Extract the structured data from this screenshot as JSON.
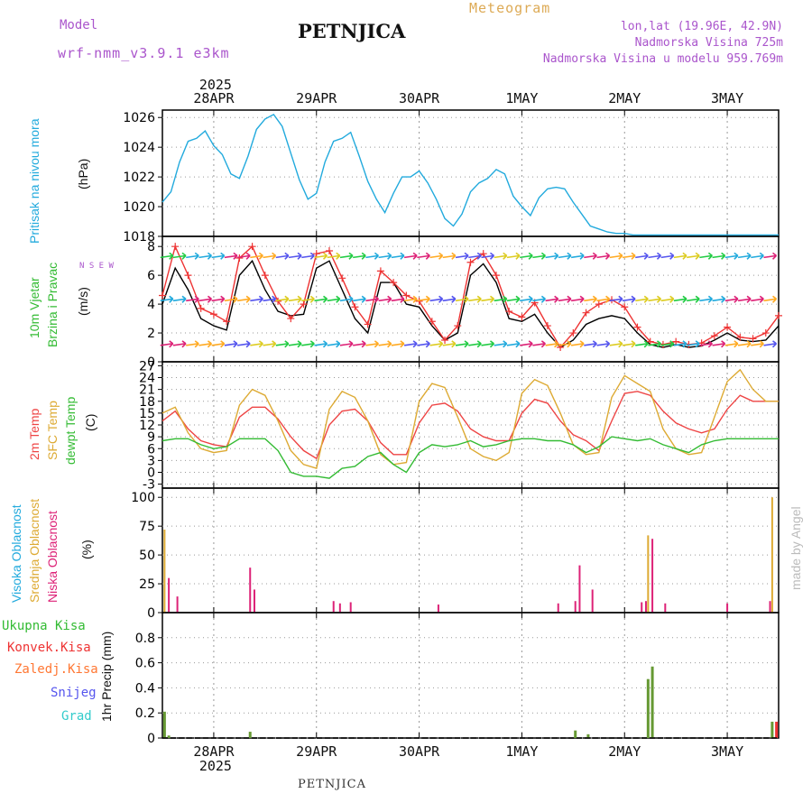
{
  "header": {
    "model_label": "Model",
    "model_name": "wrf-nmm_v3.9.1  e3km",
    "station": "PETNJICA",
    "title": "Meteogram",
    "lonlat": "lon,lat (19.96E, 42.9N)",
    "altitude": "Nadmorska Visina 725m",
    "model_altitude": "Nadmorska Visina u modelu 959.769m",
    "footer_station": "PETNJICA",
    "credit": "made by Angel"
  },
  "colors": {
    "pressure": "#22aadd",
    "wind_speed": "#000000",
    "gust": "#ee3333",
    "temp2m": "#ee4444",
    "sfc_temp": "#ddaa33",
    "dewpt": "#33bb33",
    "cloud_high": "#22aadd",
    "cloud_mid": "#ddaa33",
    "cloud_low": "#dd2277",
    "precip_total": "#669933",
    "precip_conv": "#ee3333",
    "precip_strat": "#ff7733",
    "snow": "#5555ee",
    "graupel": "#33cccc",
    "title_model": "#aa55cc",
    "title_meteo": "#ddaa55"
  },
  "chart_data": {
    "type": "meteogram",
    "time_axis": {
      "year": "2025",
      "day_labels": [
        "28APR",
        "29APR",
        "30APR",
        "1MAY",
        "2MAY",
        "3MAY"
      ],
      "start_hour": 0,
      "end_hour": 144
    },
    "panels": [
      {
        "id": "pressure",
        "type": "line",
        "ylabels": [
          "Pritisak na nivou mora",
          "(hPa)"
        ],
        "ylim": [
          1018,
          1026.5
        ],
        "yticks": [
          1018,
          1020,
          1022,
          1024,
          1026
        ],
        "series": [
          {
            "name": "Pritisak na nivou mora",
            "x": [
              0,
              2,
              4,
              6,
              8,
              10,
              12,
              14,
              16,
              18,
              20,
              22,
              24,
              26,
              28,
              30,
              32,
              34,
              36,
              38,
              40,
              42,
              44,
              46,
              48,
              50,
              52,
              54,
              56,
              58,
              60,
              62,
              64,
              66,
              68,
              70,
              72,
              74,
              76,
              78,
              80,
              82,
              84,
              86,
              88,
              90,
              92,
              94,
              96,
              98,
              100,
              102,
              104,
              106,
              108,
              110,
              112,
              114,
              116,
              118,
              120,
              122,
              124,
              126,
              128,
              130,
              132,
              134,
              136,
              138,
              140,
              142,
              144
            ],
            "values": [
              1020.3,
              1021.0,
              1023.0,
              1024.4,
              1024.6,
              1025.1,
              1024.1,
              1023.5,
              1022.2,
              1021.9,
              1023.4,
              1025.2,
              1025.9,
              1026.2,
              1025.4,
              1023.6,
              1021.8,
              1020.5,
              1020.9,
              1023.0,
              1024.4,
              1024.6,
              1025.0,
              1023.4,
              1021.7,
              1020.5,
              1019.6,
              1020.9,
              1022.0,
              1022.0,
              1022.4,
              1021.6,
              1020.5,
              1019.2,
              1018.7,
              1019.5,
              1021.0,
              1021.6,
              1021.9,
              1022.5,
              1022.2,
              1020.7,
              1020.0,
              1019.4,
              1020.6,
              1021.2,
              1021.3,
              1021.2,
              1020.3,
              1019.5,
              1018.7,
              1018.5,
              1018.3,
              1018.2,
              1018.2,
              1018.1,
              1018.1,
              1018.1,
              1018.1,
              1018.1,
              1018.1,
              1018.1,
              1018.1,
              1018.1,
              1018.1,
              1018.1,
              1018.1,
              1018.1,
              1018.1,
              1018.1,
              1018.1,
              1018.1,
              1018.1
            ]
          }
        ]
      },
      {
        "id": "wind",
        "type": "line",
        "ylabels": [
          "10m Vjetar",
          "Brzina i Pravac",
          "(m/s)"
        ],
        "compass": "N S E W",
        "ylim": [
          0,
          8.7
        ],
        "yticks": [
          0,
          2,
          4,
          6,
          8
        ],
        "series": [
          {
            "name": "Brzina",
            "x": [
              0,
              3,
              6,
              9,
              12,
              15,
              18,
              21,
              24,
              27,
              30,
              33,
              36,
              39,
              42,
              45,
              48,
              51,
              54,
              57,
              60,
              63,
              66,
              69,
              72,
              75,
              78,
              81,
              84,
              87,
              90,
              93,
              96,
              99,
              102,
              105,
              108,
              111,
              114,
              117,
              120,
              123,
              126,
              129,
              132,
              135,
              138,
              141,
              144
            ],
            "values": [
              4.0,
              6.5,
              5.0,
              3.0,
              2.5,
              2.2,
              6.0,
              7.0,
              5.0,
              3.5,
              3.2,
              3.3,
              6.5,
              7.0,
              5.0,
              3.0,
              2.0,
              5.5,
              5.5,
              4.0,
              3.8,
              2.5,
              1.5,
              2.0,
              6.0,
              6.8,
              5.5,
              3.0,
              2.8,
              3.3,
              2.0,
              1.0,
              1.5,
              2.6,
              3.0,
              3.2,
              3.0,
              2.0,
              1.2,
              1.0,
              1.2,
              1.0,
              1.1,
              1.5,
              2.0,
              1.5,
              1.4,
              1.5,
              2.5
            ]
          },
          {
            "name": "Udar",
            "x": [
              0,
              3,
              6,
              9,
              12,
              15,
              18,
              21,
              24,
              27,
              30,
              33,
              36,
              39,
              42,
              45,
              48,
              51,
              54,
              57,
              60,
              63,
              66,
              69,
              72,
              75,
              78,
              81,
              84,
              87,
              90,
              93,
              96,
              99,
              102,
              105,
              108,
              111,
              114,
              117,
              120,
              123,
              126,
              129,
              132,
              135,
              138,
              141,
              144
            ],
            "values": [
              4.6,
              8.0,
              6.0,
              3.7,
              3.3,
              2.8,
              7.2,
              8.0,
              6.0,
              4.2,
              3.0,
              4.0,
              7.5,
              7.7,
              5.8,
              3.8,
              2.6,
              6.3,
              5.5,
              4.6,
              4.2,
              2.8,
              1.5,
              2.5,
              6.9,
              7.5,
              6.0,
              3.5,
              3.1,
              4.1,
              2.5,
              1.0,
              2.0,
              3.4,
              4.0,
              4.3,
              3.8,
              2.4,
              1.4,
              1.2,
              1.4,
              1.2,
              1.3,
              1.8,
              2.4,
              1.7,
              1.6,
              2.0,
              3.2
            ]
          }
        ]
      },
      {
        "id": "temperature",
        "type": "line",
        "ylabels": [
          "2m Temp",
          "SFC Temp",
          "dewpt Temp",
          "(C)"
        ],
        "ylim": [
          -4,
          28
        ],
        "yticks": [
          -3,
          0,
          3,
          6,
          9,
          12,
          15,
          18,
          21,
          24,
          27
        ],
        "series": [
          {
            "name": "2m Temp",
            "x": [
              0,
              3,
              6,
              9,
              12,
              15,
              18,
              21,
              24,
              27,
              30,
              33,
              36,
              39,
              42,
              45,
              48,
              51,
              54,
              57,
              60,
              63,
              66,
              69,
              72,
              75,
              78,
              81,
              84,
              87,
              90,
              93,
              96,
              99,
              102,
              105,
              108,
              111,
              114,
              117,
              120,
              123,
              126,
              129,
              132,
              135,
              138,
              141,
              144
            ],
            "values": [
              13.0,
              15.5,
              11.0,
              8.0,
              7.0,
              6.5,
              14.0,
              16.5,
              16.5,
              13.5,
              9.0,
              5.5,
              3.5,
              12.0,
              15.5,
              16.0,
              13.0,
              7.5,
              4.5,
              4.5,
              12.5,
              17.0,
              17.5,
              15.5,
              11.0,
              9.0,
              8.0,
              8.0,
              15.0,
              18.5,
              17.5,
              13.0,
              9.5,
              8.0,
              5.5,
              13.0,
              20.0,
              20.5,
              19.5,
              15.5,
              12.5,
              11.0,
              10.0,
              11.0,
              16.0,
              19.5,
              18.0,
              18.0,
              18.0
            ]
          },
          {
            "name": "SFC Temp",
            "x": [
              0,
              3,
              6,
              9,
              12,
              15,
              18,
              21,
              24,
              27,
              30,
              33,
              36,
              39,
              42,
              45,
              48,
              51,
              54,
              57,
              60,
              63,
              66,
              69,
              72,
              75,
              78,
              81,
              84,
              87,
              90,
              93,
              96,
              99,
              102,
              105,
              108,
              111,
              114,
              117,
              120,
              123,
              126,
              129,
              132,
              135,
              138,
              141,
              144
            ],
            "values": [
              15.0,
              16.5,
              10.0,
              6.0,
              5.0,
              5.5,
              17.0,
              21.0,
              19.5,
              13.0,
              5.5,
              2.0,
              1.0,
              16.0,
              20.5,
              19.0,
              13.0,
              4.5,
              2.0,
              2.5,
              18.0,
              22.5,
              21.5,
              14.0,
              6.0,
              4.0,
              3.0,
              5.0,
              20.0,
              23.5,
              22.0,
              15.0,
              7.0,
              4.5,
              5.0,
              19.0,
              24.5,
              22.5,
              20.5,
              11.0,
              6.0,
              4.5,
              5.0,
              14.0,
              23.0,
              26.0,
              21.0,
              18.0,
              18.0
            ]
          },
          {
            "name": "dewpt Temp",
            "x": [
              0,
              3,
              6,
              9,
              12,
              15,
              18,
              21,
              24,
              27,
              30,
              33,
              36,
              39,
              42,
              45,
              48,
              51,
              54,
              57,
              60,
              63,
              66,
              69,
              72,
              75,
              78,
              81,
              84,
              87,
              90,
              93,
              96,
              99,
              102,
              105,
              108,
              111,
              114,
              117,
              120,
              123,
              126,
              129,
              132,
              135,
              138,
              141,
              144
            ],
            "values": [
              8.0,
              8.5,
              8.5,
              7.0,
              6.0,
              6.5,
              8.5,
              8.5,
              8.5,
              5.5,
              0.0,
              -1.0,
              -1.0,
              -1.5,
              1.0,
              1.5,
              4.0,
              5.0,
              2.0,
              0.0,
              5.0,
              7.0,
              6.5,
              7.0,
              8.0,
              6.5,
              7.0,
              8.0,
              8.5,
              8.5,
              8.0,
              8.0,
              7.0,
              5.0,
              6.5,
              9.0,
              8.5,
              8.0,
              8.5,
              7.0,
              6.0,
              5.0,
              7.0,
              8.0,
              8.5,
              8.5,
              8.5,
              8.5,
              8.5
            ]
          }
        ]
      },
      {
        "id": "clouds",
        "type": "bar",
        "ylabels": [
          "Visoka Oblacnost",
          "Srednja Oblacnost",
          "Niska Oblacnost",
          "(%)"
        ],
        "ylim": [
          0,
          108
        ],
        "yticks": [
          0,
          25,
          50,
          75,
          100
        ],
        "series": [
          {
            "name": "Visoka Oblacnost",
            "x": [],
            "values": []
          },
          {
            "name": "Srednja Oblacnost",
            "x": [
              0.5,
              113.5,
              142.5
            ],
            "values": [
              72,
              67,
              100
            ]
          },
          {
            "name": "Niska Oblacnost",
            "x": [
              1.5,
              3.5,
              20.5,
              21.5,
              40,
              41.5,
              44,
              64.5,
              92.5,
              96.5,
              97.5,
              100.5,
              112,
              113,
              114.5,
              117.5,
              132,
              142
            ],
            "values": [
              30,
              14,
              39,
              20,
              10,
              8,
              9,
              7,
              8,
              10,
              41,
              20,
              9,
              10,
              64,
              8,
              8,
              10
            ]
          }
        ]
      },
      {
        "id": "precip",
        "type": "bar",
        "ylabels": [
          "Ukupna Kisa",
          "Konvek.Kisa",
          "Zaledj.Kisa",
          "Snijeg",
          "Grad",
          "1hr Precip (mm)"
        ],
        "ylim": [
          0,
          1.0
        ],
        "yticks": [
          0,
          0.2,
          0.4,
          0.6,
          0.8
        ],
        "series": [
          {
            "name": "Ukupna Kisa",
            "x": [
              0.5,
              1.5,
              20.5,
              96.5,
              99.5,
              113.5,
              114.5,
              142.5
            ],
            "values": [
              0.21,
              0.02,
              0.05,
              0.06,
              0.03,
              0.47,
              0.57,
              0.13
            ]
          },
          {
            "name": "Konvek.Kisa",
            "x": [
              143.5
            ],
            "values": [
              0.13
            ]
          }
        ]
      }
    ]
  }
}
